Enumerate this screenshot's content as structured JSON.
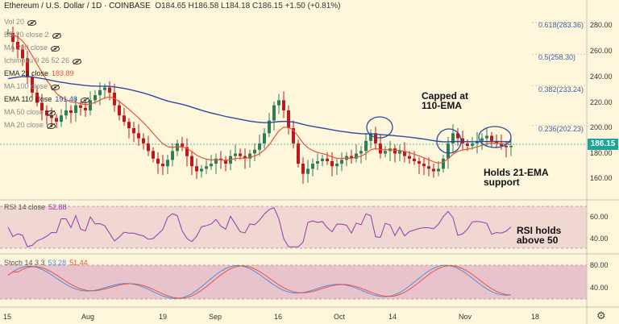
{
  "header": {
    "symbol": "Ethereum / U.S. Dollar",
    "timeframe": "1D",
    "exchange": "COINBASE",
    "ohlc": "O184.65  H186.58  L184.18  C186.15  +1.50 (+0.81%)"
  },
  "indicators": [
    {
      "label": "Vol 20",
      "value": ""
    },
    {
      "label": "BB 20 close 2",
      "value": ""
    },
    {
      "label": "MA 200 close",
      "value": ""
    },
    {
      "label": "Ichimoku 9 26 52 26",
      "value": ""
    },
    {
      "label": "EMA 21 close",
      "value": "183.89"
    },
    {
      "label": "MA 100 close",
      "value": ""
    },
    {
      "label": "EMA 110 close",
      "value": "191.48"
    },
    {
      "label": "MA 50 close",
      "value": ""
    },
    {
      "label": "MA 20 close",
      "value": ""
    }
  ],
  "fib_levels": [
    "0.618(283.36)",
    "0.5(258.30)",
    "0.382(233.24)",
    "0.236(202.23)"
  ],
  "price_axis": [
    "280.00",
    "260.00",
    "240.00",
    "220.00",
    "200.00",
    "180.00",
    "160.00"
  ],
  "current_price": "186.15",
  "x_axis": [
    "15",
    "Aug",
    "19",
    "Sep",
    "16",
    "Oct",
    "14",
    "Nov",
    "18"
  ],
  "annotations": {
    "capped_line1": "Capped at",
    "capped_line2": "110-EMA",
    "holds_line1": "Holds 21-EMA",
    "holds_line2": "support",
    "rsi_line1": "RSI holds",
    "rsi_line2": "above 50"
  },
  "rsi": {
    "label": "RSI 14 close",
    "value": "52.88",
    "axis": [
      "60.00",
      "40.00"
    ]
  },
  "stoch": {
    "label": "Stoch 14 3 3",
    "k": "53.28",
    "d": "51.44",
    "axis": [
      "80.00",
      "40.00"
    ]
  },
  "colors": {
    "background": "#fff7dc",
    "up_candle": "#2e7d5b",
    "down_candle": "#c2161d",
    "ema21": "#e8543a",
    "ema110": "#2a4d9b",
    "rsi_line": "#8e3bb0",
    "stoch_k": "#4a8fe0",
    "stoch_d": "#e8543a",
    "price_tag": "#19a79a"
  },
  "toolbar": {
    "settings_icon": "gear-icon"
  }
}
